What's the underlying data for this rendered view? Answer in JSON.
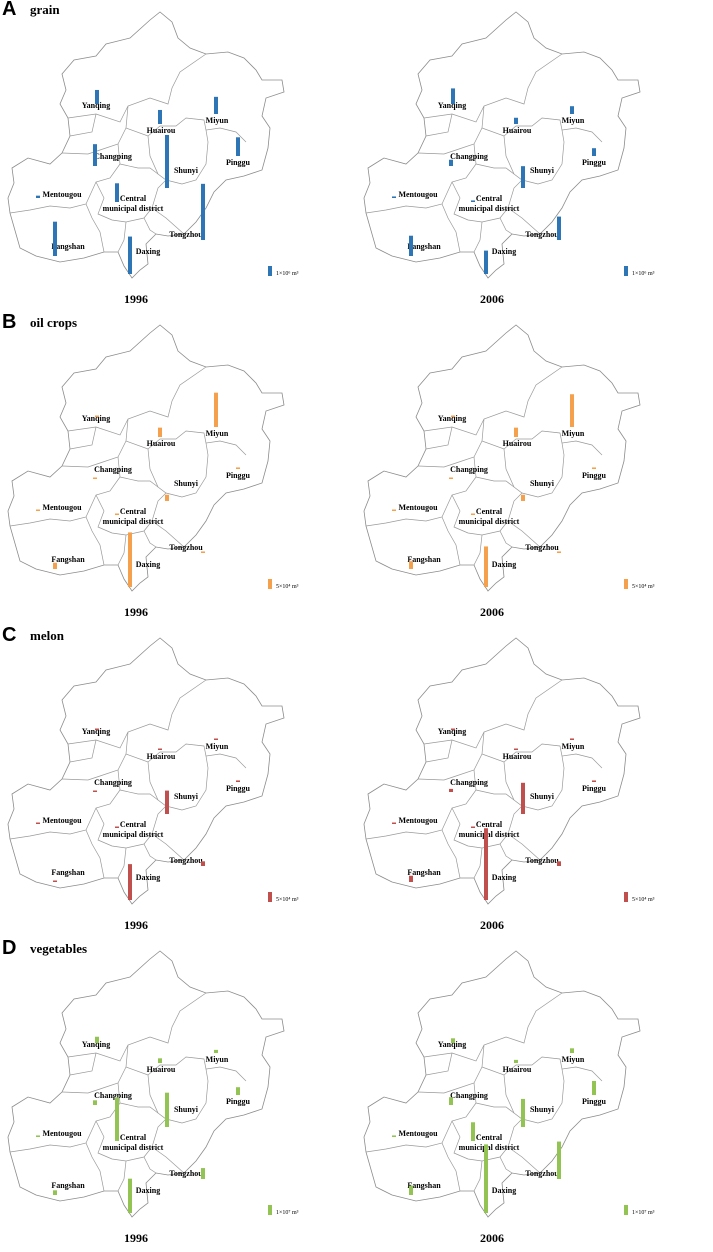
{
  "figure": {
    "scale_label": "1×10⁶ m³",
    "panels": [
      {
        "letter": "A",
        "title": "grain",
        "color": "#2e75b6",
        "scale_label": "1×10⁶ m³",
        "maps": [
          {
            "year": "1996",
            "values": {
              "Yanqing": 0.18,
              "Huairou": 0.18,
              "Miyun": 0.22,
              "Changping": 0.28,
              "Shunyi": 0.68,
              "Pinggu": 0.24,
              "Mentougou": 0.03,
              "Central": 0.24,
              "Tongzhou": 0.72,
              "Fangshan": 0.44,
              "Daxing": 0.48
            }
          },
          {
            "year": "2006",
            "values": {
              "Yanqing": 0.2,
              "Huairou": 0.08,
              "Miyun": 0.1,
              "Changping": 0.08,
              "Shunyi": 0.28,
              "Pinggu": 0.1,
              "Mentougou": 0.02,
              "Central": 0.02,
              "Tongzhou": 0.3,
              "Fangshan": 0.26,
              "Daxing": 0.3
            }
          }
        ]
      },
      {
        "letter": "B",
        "title": "oil crops",
        "color": "#f4a04c",
        "scale_label": "5×10⁴ m³",
        "maps": [
          {
            "year": "1996",
            "values": {
              "Yanqing": 0.0,
              "Huairou": 0.12,
              "Miyun": 0.44,
              "Changping": 0.0,
              "Shunyi": 0.08,
              "Pinggu": 0.02,
              "Mentougou": 0.0,
              "Central": 0.0,
              "Tongzhou": 0.02,
              "Fangshan": 0.08,
              "Daxing": 0.7
            }
          },
          {
            "year": "2006",
            "values": {
              "Yanqing": 0.0,
              "Huairou": 0.12,
              "Miyun": 0.42,
              "Changping": 0.0,
              "Shunyi": 0.08,
              "Pinggu": 0.02,
              "Mentougou": 0.0,
              "Central": 0.0,
              "Tongzhou": 0.02,
              "Fangshan": 0.1,
              "Daxing": 0.52
            }
          }
        ]
      },
      {
        "letter": "C",
        "title": "melon",
        "color": "#c0504d",
        "scale_label": "5×10⁴ m³",
        "maps": [
          {
            "year": "1996",
            "values": {
              "Yanqing": 0.0,
              "Huairou": 0.0,
              "Miyun": 0.0,
              "Changping": 0.0,
              "Shunyi": 0.3,
              "Pinggu": 0.02,
              "Mentougou": 0.0,
              "Central": 0.0,
              "Tongzhou": 0.06,
              "Fangshan": 0.0,
              "Daxing": 0.46
            }
          },
          {
            "year": "2006",
            "values": {
              "Yanqing": 0.0,
              "Huairou": 0.0,
              "Miyun": 0.02,
              "Changping": 0.04,
              "Shunyi": 0.4,
              "Pinggu": 0.02,
              "Mentougou": 0.0,
              "Central": 0.0,
              "Tongzhou": 0.06,
              "Fangshan": 0.08,
              "Daxing": 0.92
            }
          }
        ]
      },
      {
        "letter": "D",
        "title": "vegetables",
        "color": "#92c353",
        "scale_label": "1×10⁷ m³",
        "maps": [
          {
            "year": "1996",
            "values": {
              "Yanqing": 0.08,
              "Huairou": 0.06,
              "Miyun": 0.04,
              "Changping": 0.06,
              "Shunyi": 0.44,
              "Pinggu": 0.1,
              "Mentougou": 0.02,
              "Central": 0.56,
              "Tongzhou": 0.14,
              "Fangshan": 0.06,
              "Daxing": 0.44
            }
          },
          {
            "year": "2006",
            "values": {
              "Yanqing": 0.06,
              "Huairou": 0.04,
              "Miyun": 0.06,
              "Changping": 0.1,
              "Shunyi": 0.36,
              "Pinggu": 0.18,
              "Mentougou": 0.02,
              "Central": 0.24,
              "Tongzhou": 0.48,
              "Fangshan": 0.12,
              "Daxing": 0.88
            }
          }
        ]
      }
    ],
    "districts": [
      {
        "id": "Yanqing",
        "label": "Yanqing"
      },
      {
        "id": "Huairou",
        "label": "Huairou"
      },
      {
        "id": "Miyun",
        "label": "Miyun"
      },
      {
        "id": "Changping",
        "label": "Changping"
      },
      {
        "id": "Shunyi",
        "label": "Shunyi"
      },
      {
        "id": "Pinggu",
        "label": "Pinggu"
      },
      {
        "id": "Mentougou",
        "label": "Mentougou"
      },
      {
        "id": "Central",
        "label": "Central",
        "label2": "municipal district"
      },
      {
        "id": "Tongzhou",
        "label": "Tongzhou"
      },
      {
        "id": "Fangshan",
        "label": "Fangshan"
      },
      {
        "id": "Daxing",
        "label": "Daxing"
      }
    ]
  }
}
